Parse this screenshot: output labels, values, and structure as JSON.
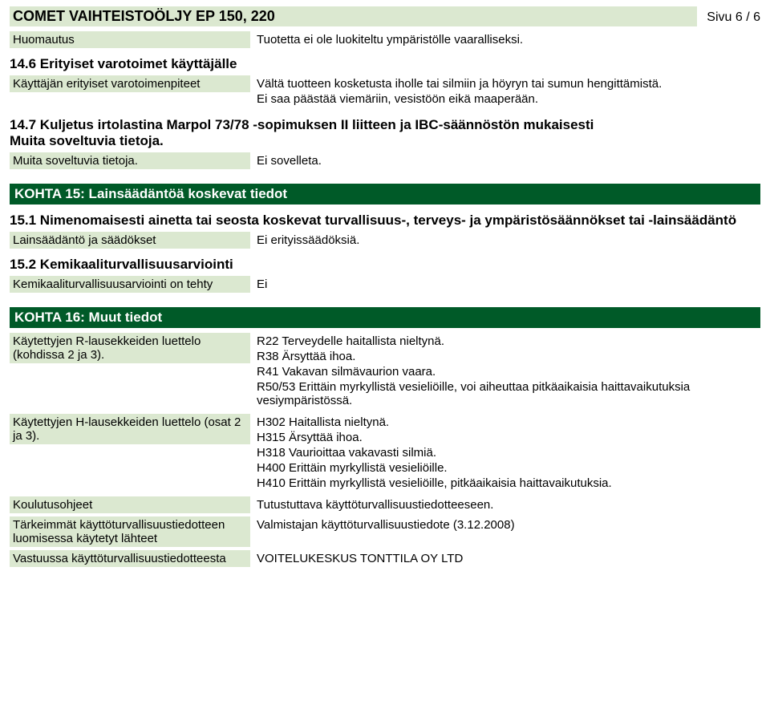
{
  "header": {
    "title": "COMET VAIHTEISTOÖLJY EP 150, 220",
    "page": "Sivu 6 / 6"
  },
  "s14": {
    "huomautus_label": "Huomautus",
    "huomautus_value": "Tuotetta ei ole luokiteltu ympäristölle vaaralliseksi.",
    "h14_6": "14.6 Erityiset varotoimet käyttäjälle",
    "kev_label": "Käyttäjän erityiset varotoimenpiteet",
    "kev_value_1": "Vältä tuotteen kosketusta iholle tai silmiin ja höyryn tai sumun hengittämistä.",
    "kev_value_2": "Ei saa päästää viemäriin, vesistöön eikä maaperään.",
    "h14_7a": "14.7 Kuljetus irtolastina Marpol 73/78 -sopimuksen II liitteen ja IBC-säännöstön mukaisesti",
    "h14_7b": "Muita soveltuvia tietoja.",
    "mst_label": "Muita soveltuvia tietoja.",
    "mst_value": "Ei sovelleta."
  },
  "s15": {
    "title": "KOHTA 15: Lainsäädäntöä koskevat tiedot",
    "h15_1": "15.1 Nimenomaisesti ainetta tai seosta koskevat turvallisuus-, terveys- ja ympäristösäännökset tai -lainsäädäntö",
    "ls_label": "Lainsäädäntö ja säädökset",
    "ls_value": "Ei erityissäädöksiä.",
    "h15_2": "15.2 Kemikaaliturvallisuusarviointi",
    "kta_label": "Kemikaaliturvallisuusarviointi on tehty",
    "kta_value": "Ei"
  },
  "s16": {
    "title": "KOHTA 16: Muut tiedot",
    "r_label": "Käytettyjen R-lausekkeiden luettelo (kohdissa 2 ja 3).",
    "r_1": "R22 Terveydelle haitallista nieltynä.",
    "r_2": "R38 Ärsyttää ihoa.",
    "r_3": "R41 Vakavan silmävaurion vaara.",
    "r_4": "R50/53 Erittäin myrkyllistä vesieliöille, voi aiheuttaa pitkäaikaisia haittavaikutuksia vesiympäristössä.",
    "h_label": "Käytettyjen H-lausekkeiden luettelo (osat 2 ja 3).",
    "h_1": "H302 Haitallista nieltynä.",
    "h_2": "H315 Ärsyttää ihoa.",
    "h_3": "H318 Vaurioittaa vakavasti silmiä.",
    "h_4": "H400 Erittäin myrkyllistä vesieliöille.",
    "h_5": "H410 Erittäin myrkyllistä vesieliöille, pitkäaikaisia haittavaikutuksia.",
    "ko_label": "Koulutusohjeet",
    "ko_value": "Tutustuttava käyttöturvallisuustiedotteeseen.",
    "tk_label": "Tärkeimmät käyttöturvallisuustiedotteen luomisessa käytetyt lähteet",
    "tk_value": "Valmistajan käyttöturvallisuustiedote (3.12.2008)",
    "vt_label": "Vastuussa käyttöturvallisuustiedotteesta",
    "vt_value": "VOITELUKESKUS TONTTILA OY LTD"
  },
  "colors": {
    "label_bg": "#dbe8d0",
    "section_bg": "#005a28",
    "section_fg": "#ffffff"
  }
}
